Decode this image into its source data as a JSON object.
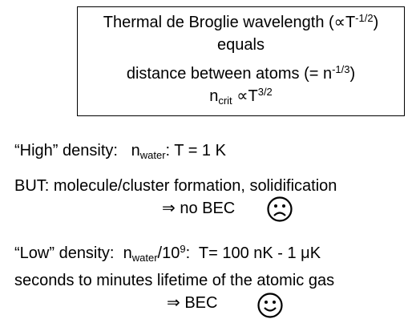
{
  "box": {
    "lines": [
      [
        "Thermal de Broglie wavelength (∝T",
        {
          "sup": "-1/2"
        },
        ")"
      ],
      [
        "equals"
      ],
      [
        "distance between atoms (= n",
        {
          "sup": "-1/3"
        },
        ")"
      ],
      [
        "n",
        {
          "sub": "crit"
        },
        " ∝T",
        {
          "sup": "3/2"
        }
      ]
    ]
  },
  "body": {
    "lines": [
      [
        "“High” density:   n",
        {
          "sub": "water"
        },
        ": T = 1 K"
      ],
      [
        "BUT: molecule/cluster formation, solidification"
      ],
      [
        "⇒ no BEC"
      ],
      [
        "“Low” density:  n",
        {
          "sub": "water"
        },
        "/10",
        {
          "sup": "9"
        },
        ":  T= 100 nK - 1 μK"
      ],
      [
        "seconds to minutes lifetime of the atomic gas"
      ],
      [
        "⇒ BEC"
      ]
    ]
  }
}
